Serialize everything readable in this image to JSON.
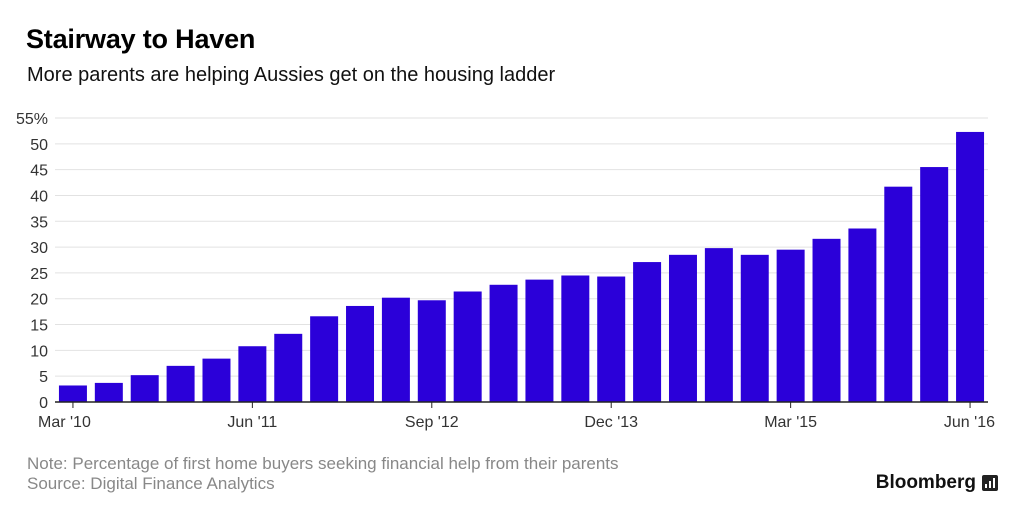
{
  "header": {
    "title": "Stairway to Haven",
    "subtitle": "More parents are helping Aussies get on the housing ladder"
  },
  "footer": {
    "note": "Note: Percentage of first home buyers seeking financial help from their parents",
    "source": "Source: Digital Finance Analytics",
    "brand": "Bloomberg"
  },
  "colors": {
    "bar": "#2b00d9",
    "grid": "#e2e2e2",
    "axis": "#222222",
    "label": "#333333"
  },
  "chart_data": {
    "type": "bar",
    "ylim": [
      0,
      55
    ],
    "yticks": [
      0,
      5,
      10,
      15,
      20,
      25,
      30,
      35,
      40,
      45,
      50,
      55
    ],
    "ytick_labels": [
      "0",
      "5",
      "10",
      "15",
      "20",
      "25",
      "30",
      "35",
      "40",
      "45",
      "50",
      "55%"
    ],
    "xtick_labels": [
      {
        "index": 0,
        "label": "Mar '10"
      },
      {
        "index": 5,
        "label": "Jun '11"
      },
      {
        "index": 10,
        "label": "Sep '12"
      },
      {
        "index": 15,
        "label": "Dec '13"
      },
      {
        "index": 20,
        "label": "Mar '15"
      },
      {
        "index": 25,
        "label": "Jun '16"
      }
    ],
    "categories": [
      "Mar '10",
      "",
      "",
      "",
      "",
      "Jun '11",
      "",
      "",
      "",
      "",
      "Sep '12",
      "",
      "",
      "",
      "",
      "Dec '13",
      "",
      "",
      "",
      "",
      "Mar '15",
      "",
      "",
      "",
      "",
      "Jun '16"
    ],
    "values": [
      3.2,
      3.7,
      5.2,
      7.0,
      8.4,
      10.8,
      13.2,
      16.6,
      18.6,
      20.2,
      19.7,
      21.4,
      22.7,
      23.7,
      24.5,
      24.3,
      27.1,
      28.5,
      29.8,
      28.5,
      29.5,
      31.6,
      33.6,
      41.7,
      45.5,
      52.3
    ],
    "grid": true,
    "legend": "none"
  }
}
